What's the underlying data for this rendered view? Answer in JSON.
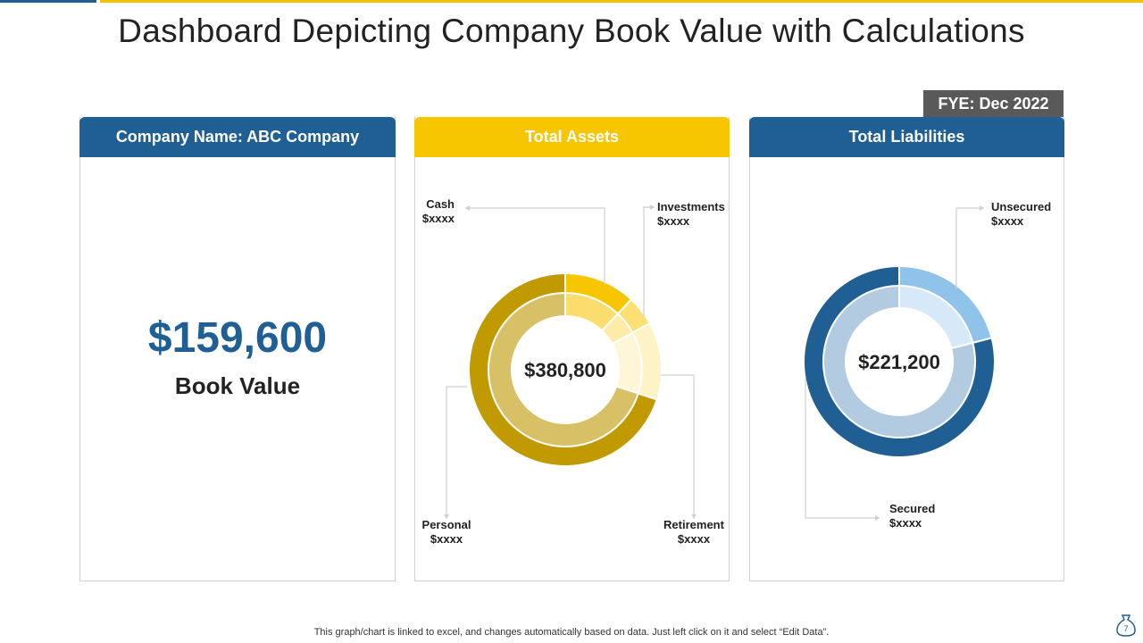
{
  "title": "Dashboard Depicting Company Book Value with Calculations",
  "fye": "FYE: Dec 2022",
  "company_panel": {
    "header": "Company Name: ABC Company",
    "book_value": "$159,600",
    "book_label": "Book Value"
  },
  "assets_panel": {
    "header": "Total Assets",
    "center_value": "$380,800"
  },
  "liabilities_panel": {
    "header": "Total Liabilities",
    "center_value": "$221,200"
  },
  "footer": "This graph/chart is linked to excel,  and changes automatically based on data. Just left click on it and select “Edit Data”.",
  "page_number": "7",
  "colors": {
    "brand_blue": "#1f5f93",
    "brand_yellow": "#f7c600",
    "fye_gray": "#595959"
  },
  "chart_data": [
    {
      "type": "pie",
      "title": "Total Assets",
      "center_label": "$380,800",
      "categories": [
        "Cash",
        "Investments",
        "Retirement",
        "Personal"
      ],
      "value_labels": [
        "$xxxx",
        "$xxxx",
        "$xxxx",
        "$xxxx"
      ],
      "series": [
        {
          "values": [
            12,
            5,
            13,
            70
          ]
        },
        {
          "values": [
            12,
            5,
            13,
            70
          ]
        }
      ],
      "colors": {
        "outer": [
          "#f7c600",
          "#fde074",
          "#fef3c4",
          "#c09a00"
        ],
        "inner": [
          "#fbdd6e",
          "#fdeca8",
          "#fff6d8",
          "#d8c066"
        ]
      }
    },
    {
      "type": "pie",
      "title": "Total Liabilities",
      "center_label": "$221,200",
      "categories": [
        "Unsecured",
        "Secured"
      ],
      "value_labels": [
        "$xxxx",
        "$xxxx"
      ],
      "series": [
        {
          "values": [
            21,
            79
          ]
        },
        {
          "values": [
            21,
            79
          ]
        }
      ],
      "colors": {
        "outer": [
          "#8fc3ea",
          "#1f5f93"
        ],
        "inner": [
          "#d7e9f8",
          "#b3cbe0"
        ]
      }
    }
  ]
}
